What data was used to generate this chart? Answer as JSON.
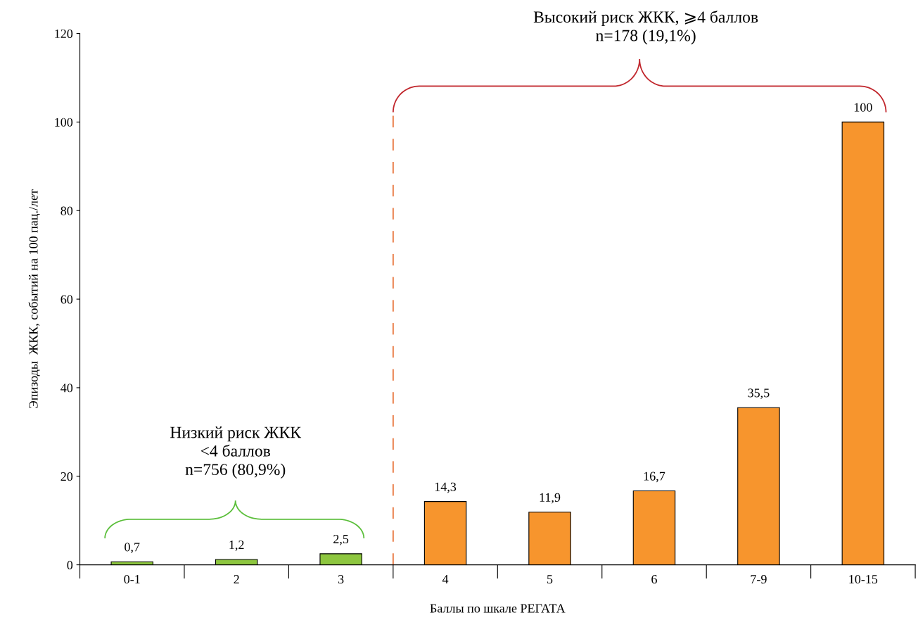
{
  "chart_data": {
    "type": "bar",
    "xlabel": "Баллы по шкале РЕГАТА",
    "ylabel": "Эпизоды  ЖКК, событий на 100 пац./лет",
    "categories": [
      "0-1",
      "2",
      "3",
      "4",
      "5",
      "6",
      "7-9",
      "10-15"
    ],
    "values": [
      0.7,
      1.2,
      2.5,
      14.3,
      11.9,
      16.7,
      35.5,
      100
    ],
    "colors": [
      "#8dc63f",
      "#8dc63f",
      "#8dc63f",
      "#f7952d",
      "#f7952d",
      "#f7952d",
      "#f7952d",
      "#f7952d"
    ],
    "value_labels": [
      "0,7",
      "1,2",
      "2,5",
      "14,3",
      "11,9",
      "16,7",
      "35,5",
      "100"
    ],
    "ylim": [
      0,
      120
    ],
    "yticks": [
      0,
      20,
      40,
      60,
      80,
      100,
      120
    ],
    "annotations": [
      "Низкий риск ЖКК\n<4 баллов\nn=756 (80,9%)",
      "Высокий риск ЖКК, ⩾4 баллов\nn=178 (19,1%)"
    ],
    "grid": false,
    "legend": false
  }
}
